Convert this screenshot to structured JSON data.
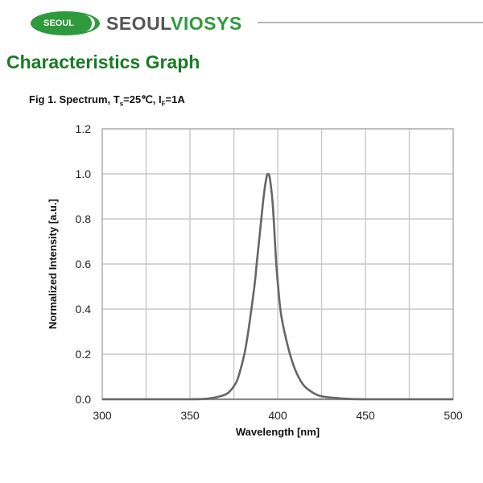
{
  "header": {
    "logo_badge": "SEOUL",
    "brand_prefix": "SEOUL",
    "brand_suffix": "VIOSYS",
    "brand_color": "#2f9a3c"
  },
  "page": {
    "title": "Characteristics Graph",
    "title_color": "#1a7a25"
  },
  "figure": {
    "caption_prefix": "Fig 1. Spectrum, T",
    "caption_sub1": "s",
    "caption_mid": "=25℃, I",
    "caption_sub2": "F",
    "caption_suffix": "=1A"
  },
  "chart_data": {
    "type": "line",
    "title": "Fig 1. Spectrum, Ts=25℃, IF=1A",
    "xlabel": "Wavelength [nm]",
    "ylabel": "Normalized Intensity [a.u.]",
    "xlim": [
      300,
      500
    ],
    "ylim": [
      0,
      1.2
    ],
    "xticks": [
      300,
      350,
      400,
      450,
      500
    ],
    "yticks": [
      "0.0",
      "0.2",
      "0.4",
      "0.6",
      "0.8",
      "1.0",
      "1.2"
    ],
    "grid": true,
    "x_gridlines": [
      300,
      325,
      350,
      375,
      400,
      425,
      450,
      475,
      500
    ],
    "line_color": "#666666",
    "series": [
      {
        "name": "Spectrum",
        "x": [
          300,
          350,
          362,
          368,
          372,
          376,
          378,
          381,
          383,
          385,
          387,
          388,
          390,
          392,
          393.5,
          394.5,
          395.5,
          397,
          398,
          399,
          400,
          401.5,
          403,
          405,
          407,
          410,
          414,
          418,
          424,
          434,
          450,
          500
        ],
        "y": [
          0.0,
          0.0,
          0.005,
          0.015,
          0.03,
          0.07,
          0.11,
          0.2,
          0.29,
          0.4,
          0.52,
          0.6,
          0.75,
          0.9,
          0.98,
          1.0,
          0.98,
          0.88,
          0.76,
          0.62,
          0.52,
          0.4,
          0.33,
          0.26,
          0.2,
          0.13,
          0.07,
          0.04,
          0.015,
          0.005,
          0.0,
          0.0
        ]
      }
    ],
    "peak_wavelength_nm": 395
  }
}
